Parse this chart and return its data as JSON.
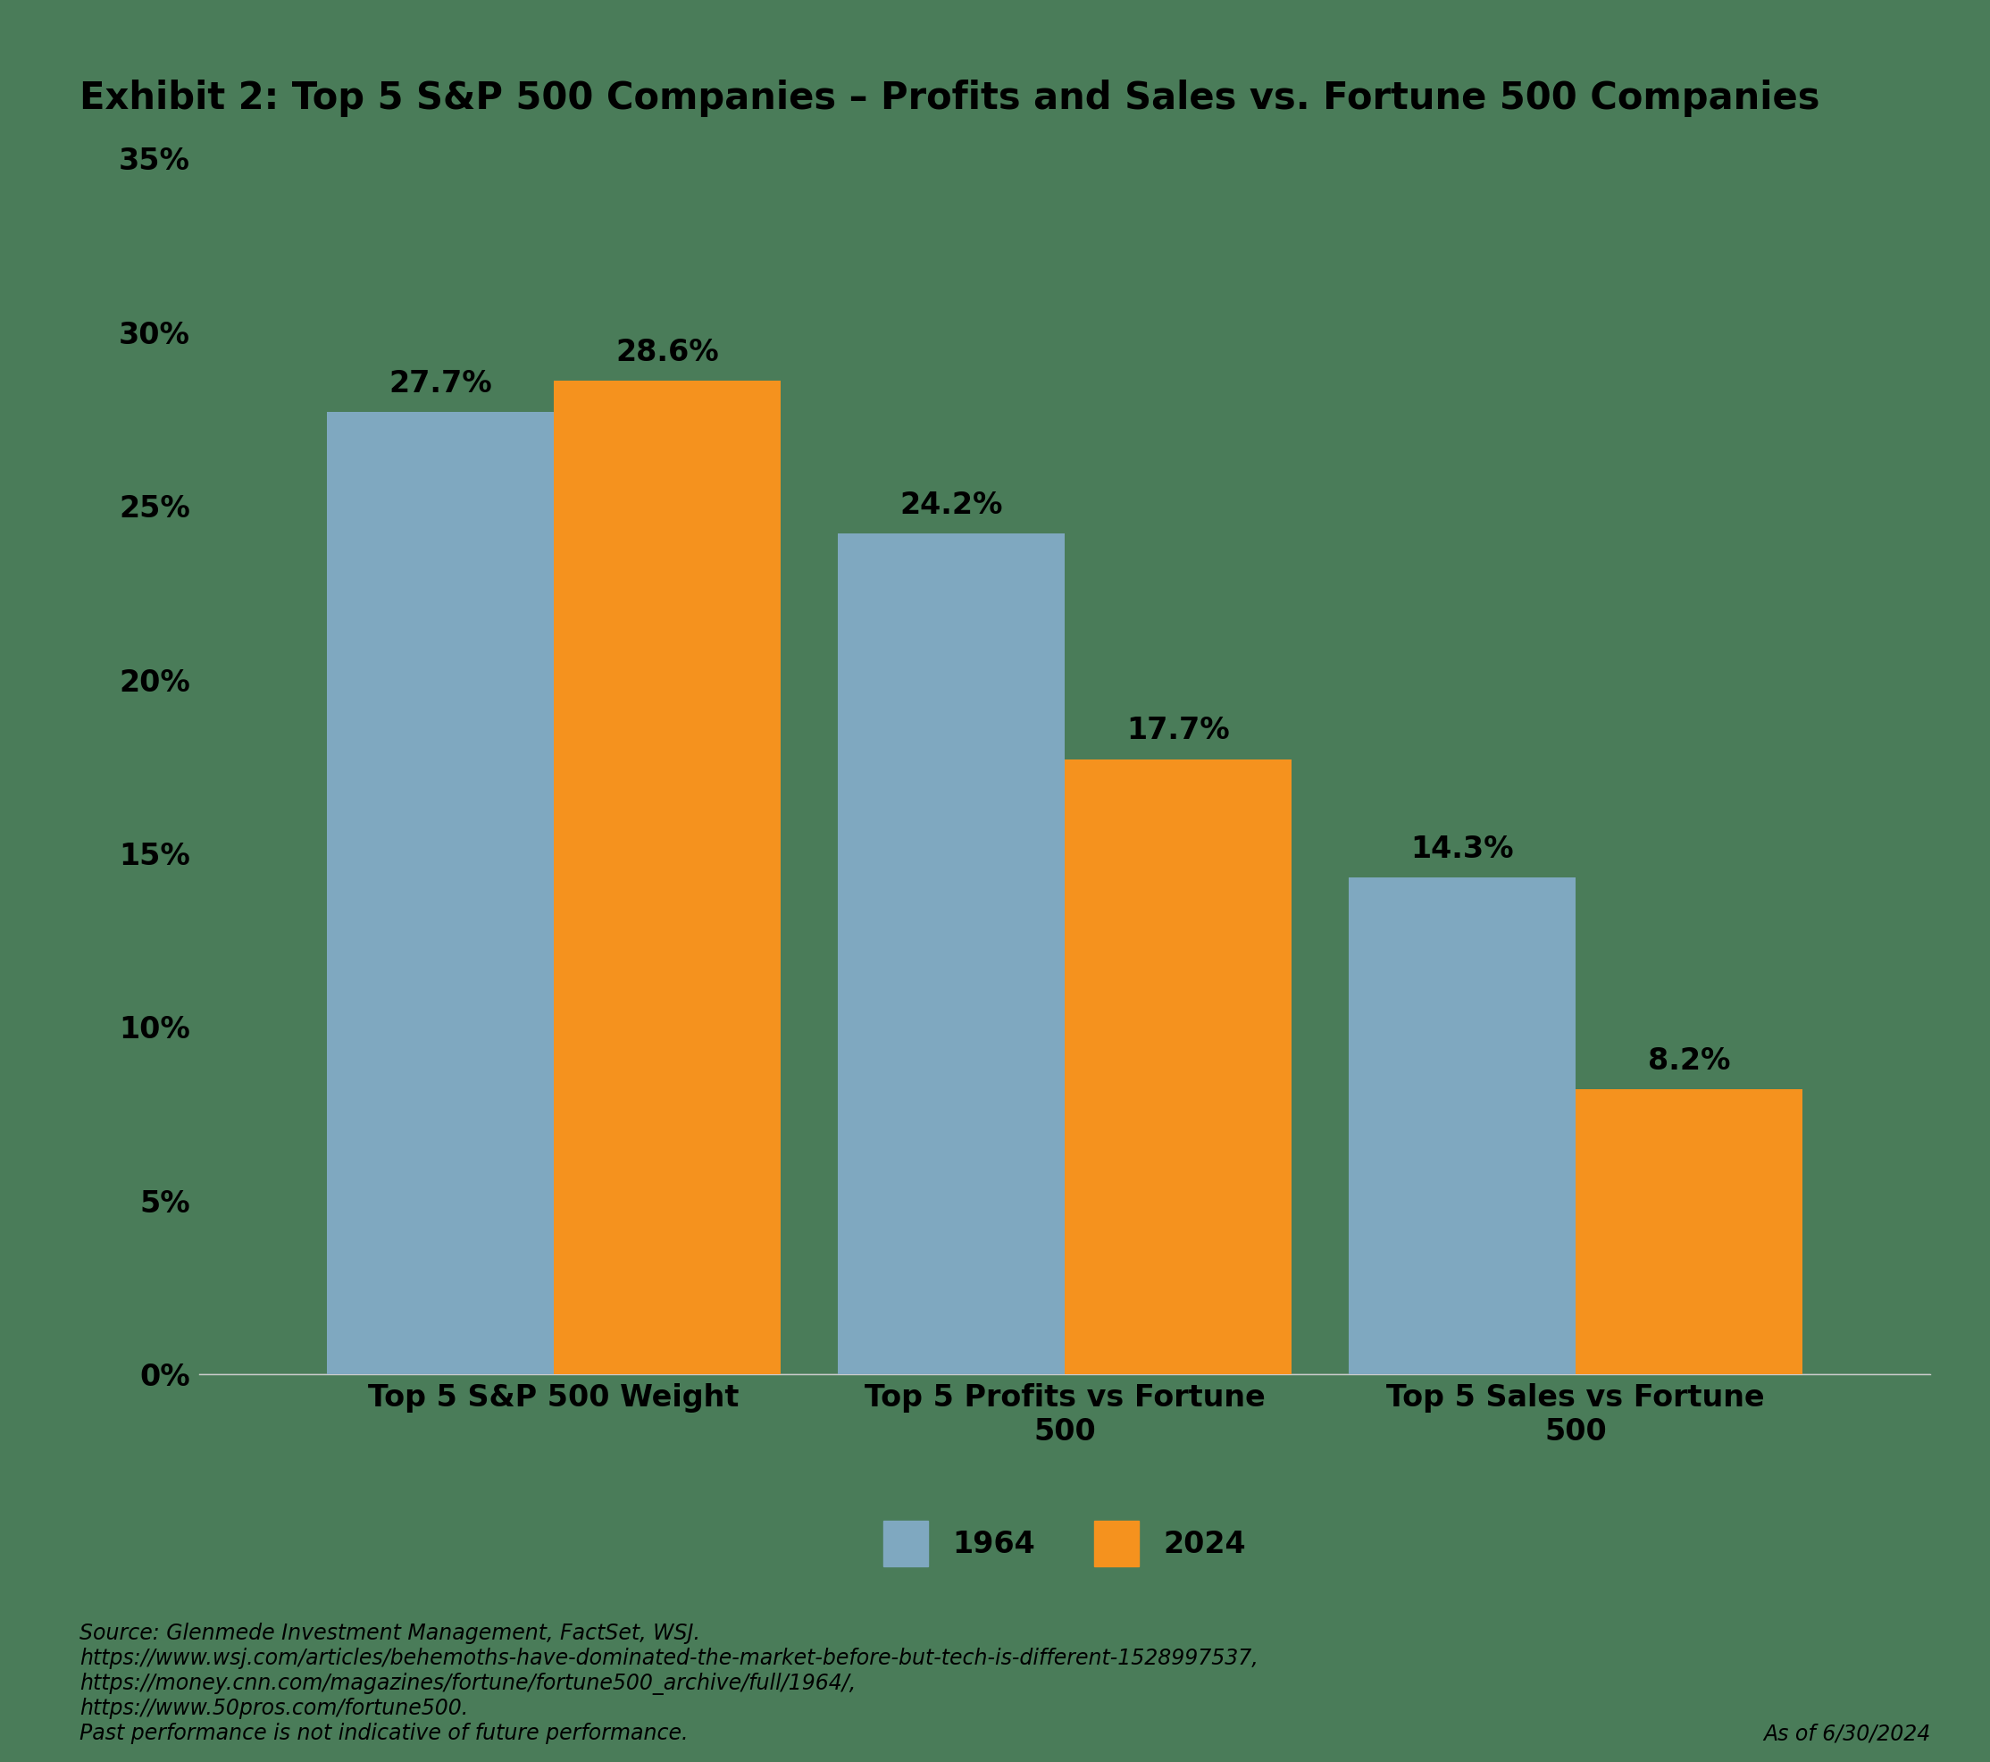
{
  "title": "Exhibit 2: Top 5 S&P 500 Companies – Profits and Sales vs. Fortune 500 Companies",
  "categories": [
    "Top 5 S&P 500 Weight",
    "Top 5 Profits vs Fortune\n500",
    "Top 5 Sales vs Fortune\n500"
  ],
  "values_1964": [
    27.7,
    24.2,
    14.3
  ],
  "values_2024": [
    28.6,
    17.7,
    8.2
  ],
  "color_1964": "#7fa8c0",
  "color_2024": "#f5921e",
  "background_color": "#4a7c59",
  "text_color": "#000000",
  "ylim": [
    0,
    35
  ],
  "yticks": [
    0,
    5,
    10,
    15,
    20,
    25,
    30,
    35
  ],
  "ytick_labels": [
    "0%",
    "5%",
    "10%",
    "15%",
    "20%",
    "25%",
    "30%",
    "35%"
  ],
  "legend_labels": [
    "1964",
    "2024"
  ],
  "bar_width": 0.32,
  "bar_gap": 0.72,
  "source_text": "Source: Glenmede Investment Management, FactSet, WSJ.\nhttps://www.wsj.com/articles/behemoths-have-dominated-the-market-before-but-tech-is-different-1528997537,\nhttps://money.cnn.com/magazines/fortune/fortune500_archive/full/1964/,\nhttps://www.50pros.com/fortune500.\nPast performance is not indicative of future performance.",
  "date_text": "As of 6/30/2024",
  "title_fontsize": 30,
  "tick_fontsize": 24,
  "label_fontsize": 24,
  "annot_fontsize": 24,
  "legend_fontsize": 24,
  "source_fontsize": 17
}
